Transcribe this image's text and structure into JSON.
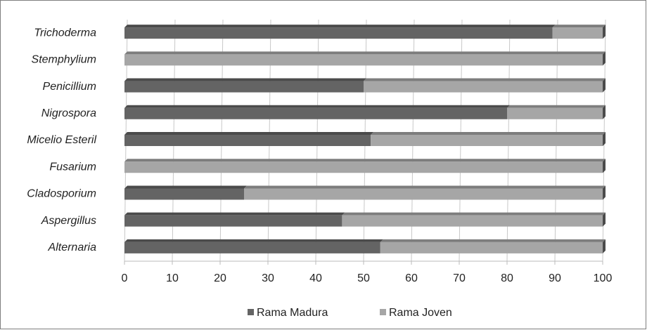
{
  "chart_data": {
    "type": "stacked-bar-horizontal",
    "categories": [
      "Trichoderma",
      "Stemphylium",
      "Penicillium",
      "Nigrospora",
      "Micelio Esteril",
      "Fusarium",
      "Cladosporium",
      "Aspergillus",
      "Alternaria"
    ],
    "series": [
      {
        "name": "Rama Madura",
        "color": "#646464",
        "values": [
          89.5,
          0,
          50,
          80,
          51.5,
          0,
          25,
          45.5,
          53.5
        ]
      },
      {
        "name": "Rama Joven",
        "color": "#a6a6a6",
        "values": [
          10.5,
          100,
          50,
          20,
          48.5,
          100,
          75,
          54.5,
          46.5
        ]
      }
    ],
    "xlim": [
      0,
      100
    ],
    "xticks": [
      0,
      10,
      20,
      30,
      40,
      50,
      60,
      70,
      80,
      90,
      100
    ],
    "grid": true,
    "legend": "bottom"
  }
}
